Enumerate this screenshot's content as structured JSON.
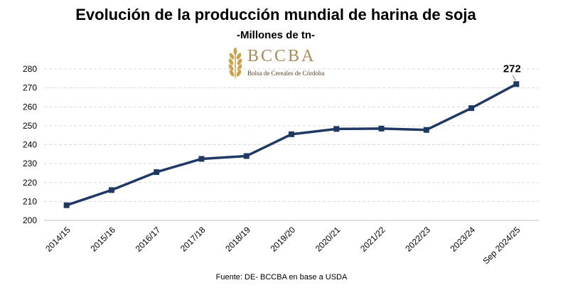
{
  "chart_data": {
    "type": "line",
    "title": "Evolución de la producción mundial de harina de soja",
    "subtitle": "-Millones de tn-",
    "categories": [
      "2014/15",
      "2015/16",
      "2016/17",
      "2017/18",
      "2018/19",
      "2019/20",
      "2020/21",
      "2021/22",
      "2022/23",
      "2023/24",
      "Sep 2024/25"
    ],
    "series": [
      {
        "values": [
          208,
          216,
          225.5,
          232.5,
          234,
          245.5,
          248.3,
          248.5,
          247.8,
          259.3,
          272
        ]
      }
    ],
    "data_labels": [
      {
        "index": 10,
        "text": "272"
      }
    ],
    "ylim": [
      200,
      280
    ],
    "yticks": [
      200,
      210,
      220,
      230,
      240,
      250,
      260,
      270,
      280
    ],
    "xlabel": "",
    "ylabel": "",
    "grid": "horizontal dashed",
    "legend": "none",
    "colors": {
      "line": "#1f3864",
      "grid": "#d9d9d9",
      "axis": "#bfbfbf"
    }
  },
  "logo": {
    "text": "BCCBA",
    "subtitle": "Bolsa de Cereales de Córdoba",
    "color": "#a98a59"
  },
  "source": "Fuente: DE- BCCBA en base a USDA"
}
